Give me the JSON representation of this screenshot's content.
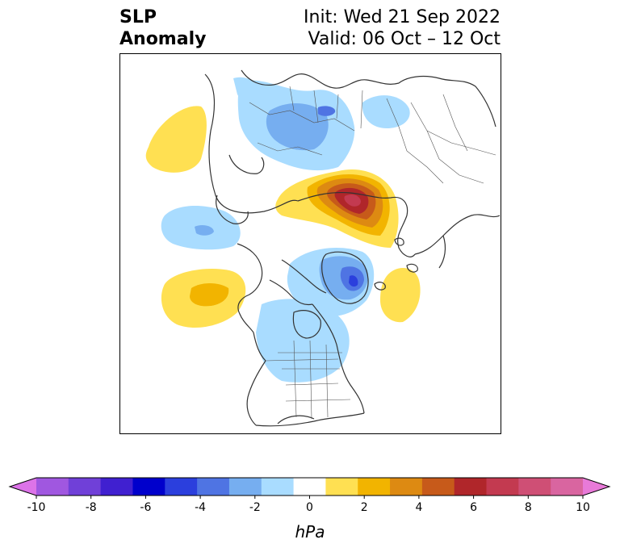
{
  "title": {
    "variable_line1": "SLP",
    "variable_line2": "Anomaly",
    "init": "Init: Wed 21 Sep 2022",
    "valid": "Valid: 06 Oct – 12 Oct"
  },
  "colorbar": {
    "units": "hPa",
    "tick_labels": [
      "-10",
      "-8",
      "-6",
      "-4",
      "-2",
      "0",
      "2",
      "4",
      "6",
      "8",
      "10"
    ],
    "levels": [
      -10,
      -9,
      -8,
      -7,
      -6,
      -5,
      -4,
      -3,
      -2,
      -1,
      1,
      2,
      3,
      4,
      5,
      6,
      7,
      8,
      9,
      10
    ],
    "colors": [
      "#dc73e8",
      "#a057e0",
      "#7040d8",
      "#4020d0",
      "#0000cc",
      "#2b3fdd",
      "#4f74e3",
      "#76aef0",
      "#a9dcff",
      "#ffffff",
      "#ffe052",
      "#f2b400",
      "#dd8a12",
      "#c75a1a",
      "#b0262a",
      "#c33a50",
      "#cf4f75",
      "#d965a0",
      "#e87ad8"
    ],
    "extend": "both"
  },
  "map": {
    "projection": "north-polar-stereographic",
    "region": "North America / Arctic / North Pacific",
    "anomaly_features": [
      {
        "region": "North Pacific (Gulf of Alaska)",
        "sign": "positive",
        "peak_hpa": 3
      },
      {
        "region": "Northeast Pacific",
        "sign": "positive",
        "peak_hpa": 2
      },
      {
        "region": "Bering Sea / North Pacific",
        "sign": "negative",
        "peak_hpa": -2
      },
      {
        "region": "Siberia / Kara Sea",
        "sign": "positive",
        "peak_hpa": 7
      },
      {
        "region": "Scandinavia / Northern Europe",
        "sign": "negative",
        "peak_hpa": -3
      },
      {
        "region": "Greenland",
        "sign": "negative",
        "peak_hpa": -5
      },
      {
        "region": "North Atlantic",
        "sign": "positive",
        "peak_hpa": 2
      },
      {
        "region": "Central North America",
        "sign": "negative",
        "peak_hpa": -2
      }
    ]
  }
}
